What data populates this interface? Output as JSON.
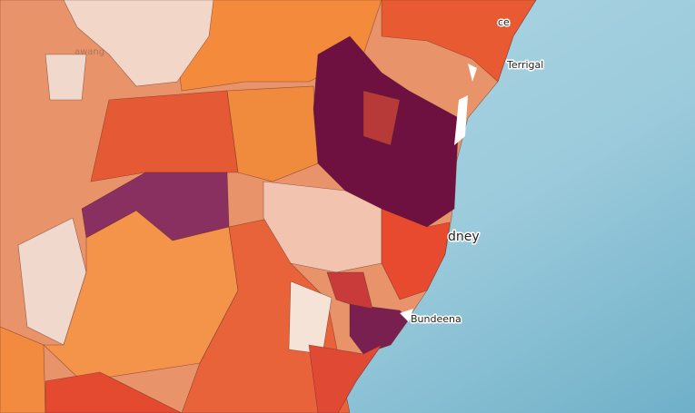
{
  "map": {
    "labels": [
      "ce",
      "Terrigal",
      "dney",
      "Bundeena",
      "awang"
    ]
  }
}
